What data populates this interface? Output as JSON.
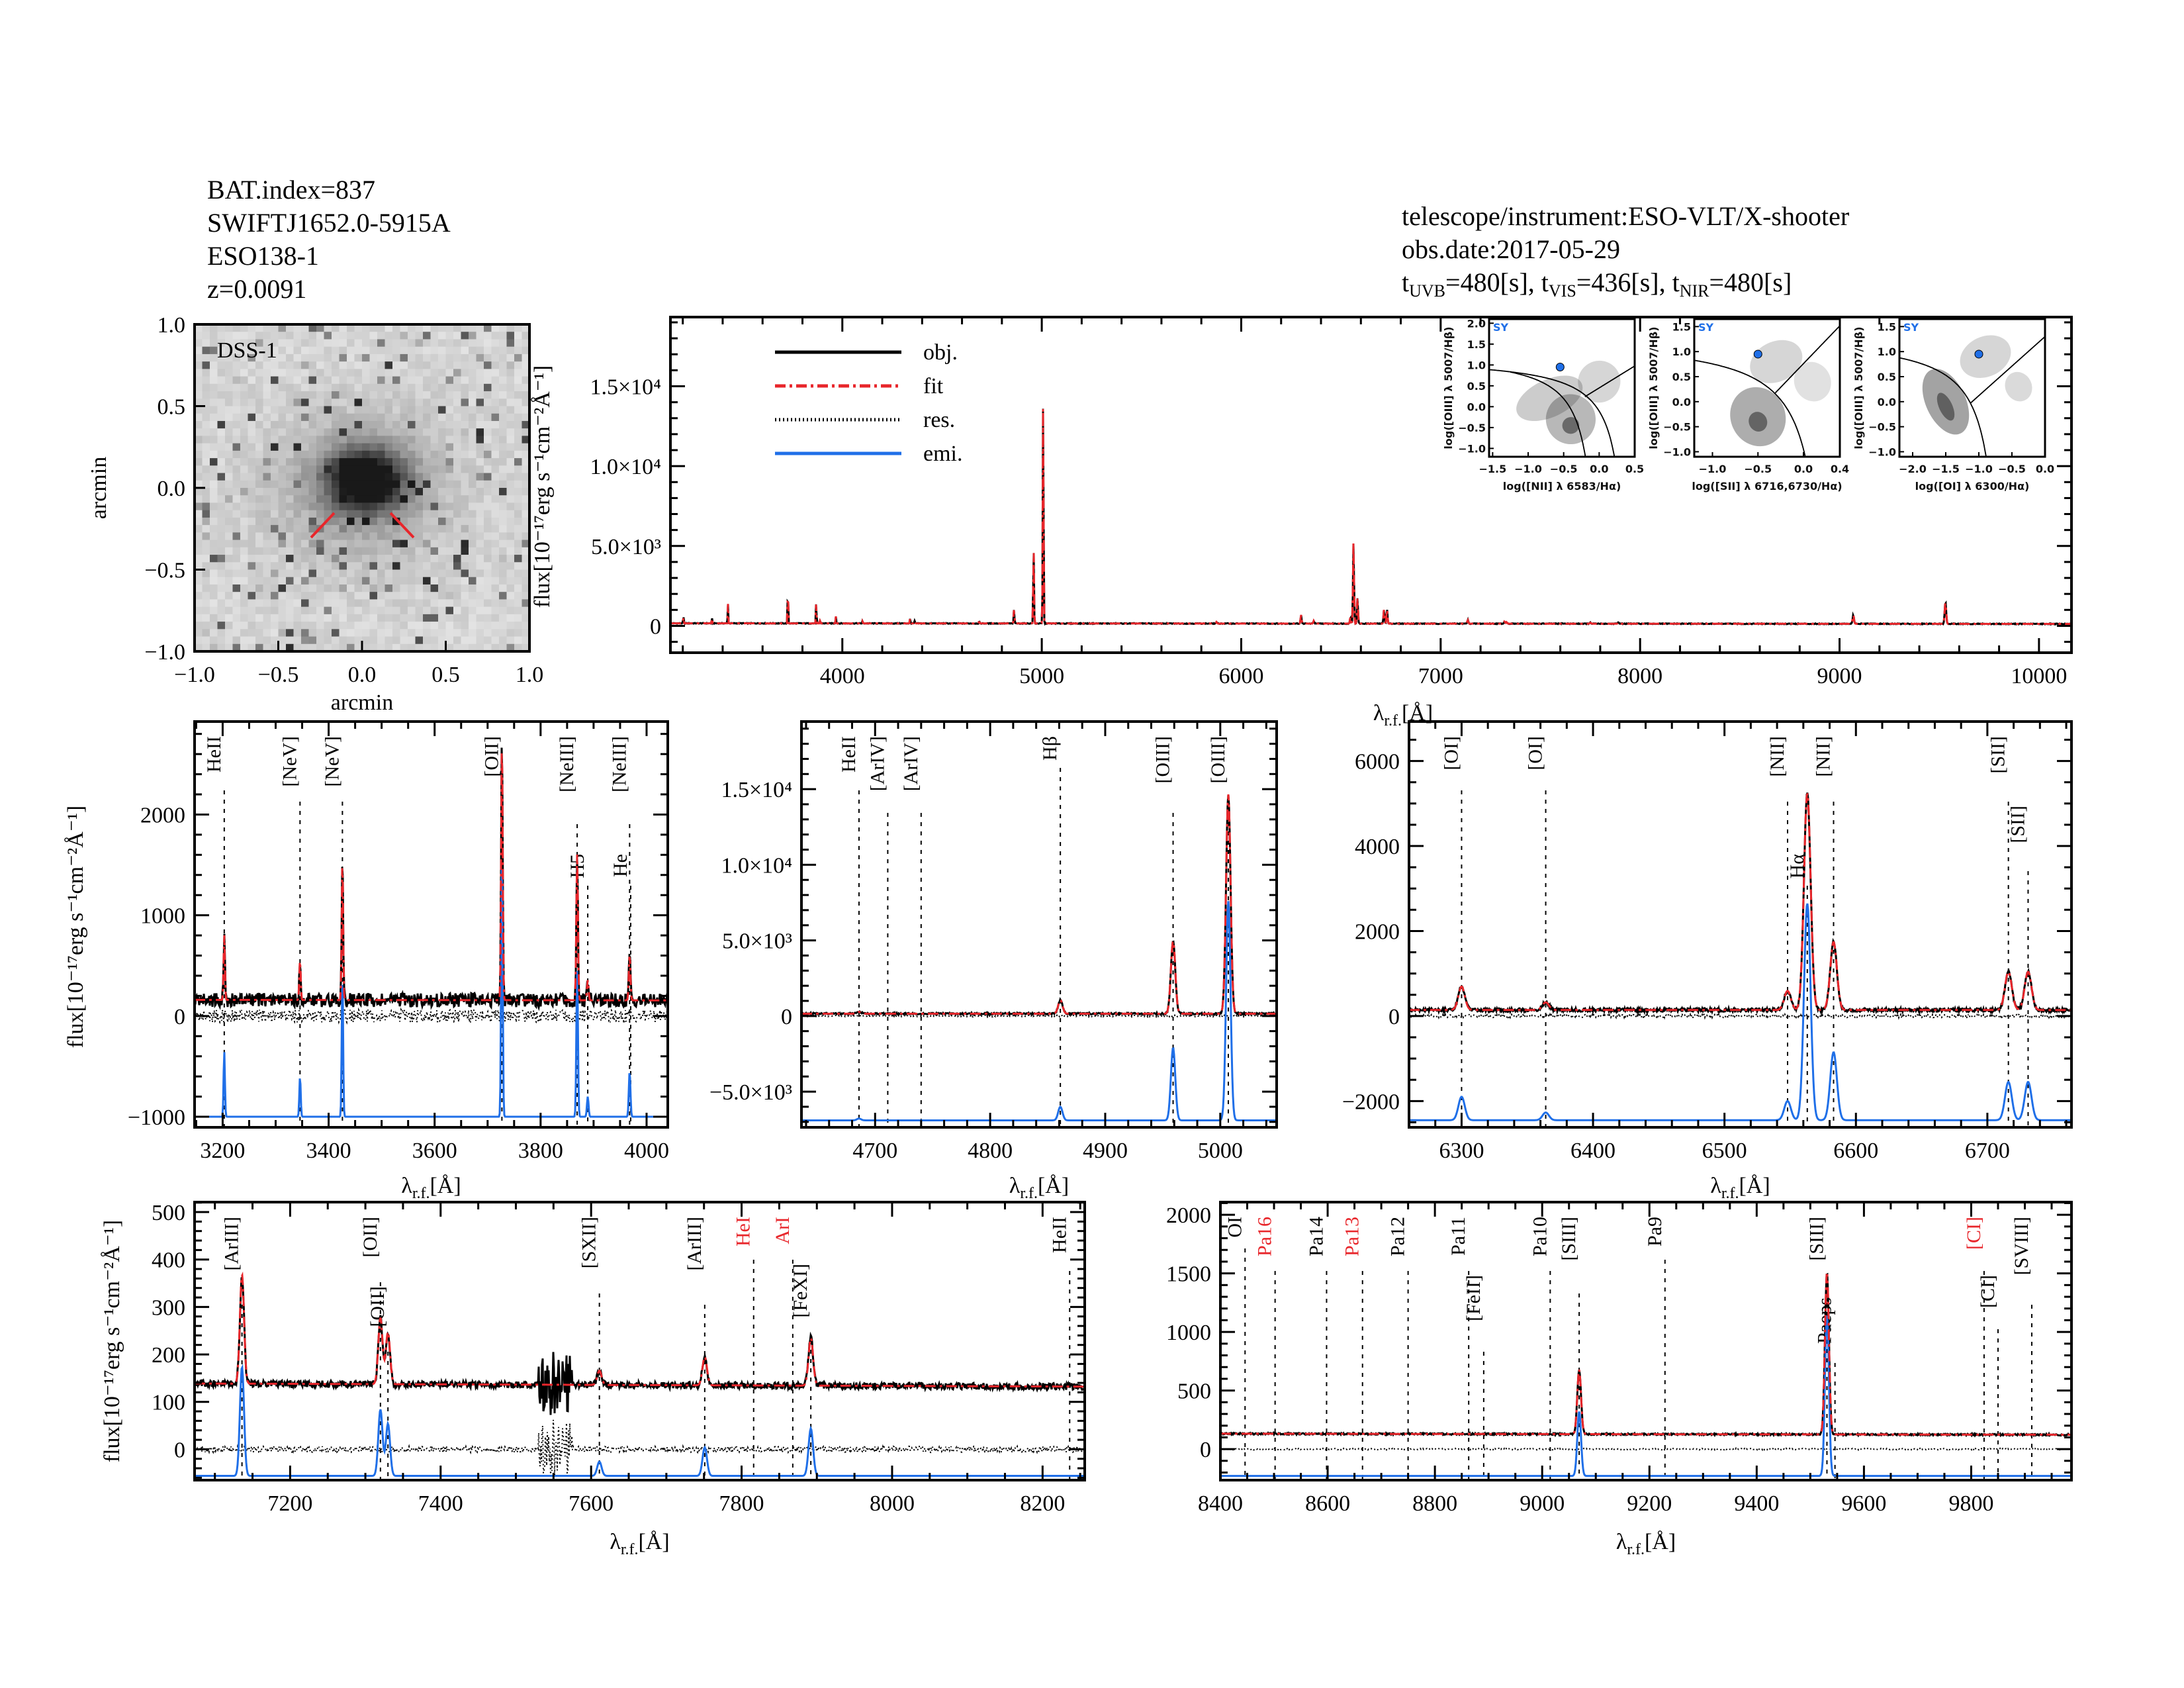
{
  "header": {
    "bat_index": "BAT.index=837",
    "swift_name": "SWIFTJ1652.0-5915A",
    "galaxy": "ESO138-1",
    "redshift": "z=0.0091",
    "instrument": "telescope/instrument:ESO-VLT/X-shooter",
    "obs_date": "obs.date:2017-05-29",
    "exposures": [
      {
        "prefix": "t",
        "band": "UVB",
        "value": "=480[s],"
      },
      {
        "prefix": "t",
        "band": "VIS",
        "value": "=436[s],"
      },
      {
        "prefix": "t",
        "band": "NIR",
        "value": "=480[s]"
      }
    ]
  },
  "image": {
    "label": "DSS-1",
    "xlabel": "arcmin",
    "ylabel": "arcmin",
    "ticks": [
      "−1.0",
      "−0.5",
      "0.0",
      "0.5",
      "1.0"
    ],
    "tick_values": [
      -1.0,
      -0.5,
      0.0,
      0.5,
      1.0
    ]
  },
  "colors": {
    "obj": "#000000",
    "fit": "#e8262b",
    "res": "#000000",
    "emi": "#1f6fe8",
    "red_label": "#e8262b",
    "sy_label": "#1f6fe8"
  },
  "xlabel": {
    "main": "λ",
    "sub": "r.f.",
    "unit": "[Å]"
  },
  "ylabel": "flux[10⁻¹⁷erg s⁻¹cm⁻²Å⁻¹]",
  "legend": [
    {
      "key": "obj",
      "label": "obj."
    },
    {
      "key": "fit",
      "label": "fit"
    },
    {
      "key": "res",
      "label": "res."
    },
    {
      "key": "emi",
      "label": "emi."
    }
  ],
  "emission_lines": [
    {
      "wave": 3203,
      "peak": 650
    },
    {
      "wave": 3346,
      "peak": 400
    },
    {
      "wave": 3426,
      "peak": 1400
    },
    {
      "wave": 3727,
      "peak": 2600
    },
    {
      "wave": 3869,
      "peak": 1450
    },
    {
      "wave": 3889,
      "peak": 200
    },
    {
      "wave": 3968,
      "peak": 450
    },
    {
      "wave": 4101,
      "peak": 150
    },
    {
      "wave": 4340,
      "peak": 300
    },
    {
      "wave": 4363,
      "peak": 150
    },
    {
      "wave": 4686,
      "peak": 120
    },
    {
      "wave": 4861,
      "peak": 900
    },
    {
      "wave": 4959,
      "peak": 4800
    },
    {
      "wave": 5007,
      "peak": 14500
    },
    {
      "wave": 5876,
      "peak": 100
    },
    {
      "wave": 6300,
      "peak": 550
    },
    {
      "wave": 6364,
      "peak": 180
    },
    {
      "wave": 6548,
      "peak": 450
    },
    {
      "wave": 6563,
      "peak": 5100
    },
    {
      "wave": 6583,
      "peak": 1600
    },
    {
      "wave": 6716,
      "peak": 900
    },
    {
      "wave": 6731,
      "peak": 900
    },
    {
      "wave": 7136,
      "peak": 230
    },
    {
      "wave": 7320,
      "peak": 140
    },
    {
      "wave": 7330,
      "peak": 110
    },
    {
      "wave": 7611,
      "peak": 30
    },
    {
      "wave": 7751,
      "peak": 60
    },
    {
      "wave": 7892,
      "peak": 100
    },
    {
      "wave": 9069,
      "peak": 550
    },
    {
      "wave": 9531,
      "peak": 1380
    }
  ],
  "chart_data": [
    {
      "id": "overview",
      "type": "line",
      "xlim": [
        3138,
        10163
      ],
      "ylim": [
        -1680,
        19330
      ],
      "xticks": [
        4000,
        5000,
        6000,
        7000,
        8000,
        9000,
        10000
      ],
      "xticklabels": [
        "4000",
        "5000",
        "6000",
        "7000",
        "8000",
        "9000",
        "10000"
      ],
      "xminor": 200,
      "yticks": [
        0,
        5000,
        10000,
        15000
      ],
      "yticklabels": [
        "0",
        "5.0×10³",
        "1.0×10⁴",
        "1.5×10⁴"
      ],
      "yminor": 1000,
      "series": [
        "obj",
        "fit"
      ],
      "emi_offset": null,
      "markers": []
    },
    {
      "id": "uv",
      "type": "line",
      "xlim": [
        3147,
        4040
      ],
      "ylim": [
        -1105,
        2923
      ],
      "xticks": [
        3200,
        3400,
        3600,
        3800,
        4000
      ],
      "xticklabels": [
        "3200",
        "3400",
        "3600",
        "3800",
        "4000"
      ],
      "xminor": 50,
      "yticks": [
        -1000,
        0,
        1000,
        2000
      ],
      "yticklabels": [
        "−1000",
        "0",
        "1000",
        "2000"
      ],
      "yminor": 200,
      "series": [
        "obj",
        "fit",
        "res",
        "emi"
      ],
      "emi_offset": -1000,
      "markers": [
        {
          "label": "HeII",
          "wave": 3203
        },
        {
          "label": "[NeV]",
          "wave": 3346
        },
        {
          "label": "[NeV]",
          "wave": 3426
        },
        {
          "label": "[OII]",
          "wave": 3727
        },
        {
          "label": "[NeIII]",
          "wave": 3869
        },
        {
          "label": "H5",
          "wave": 3889
        },
        {
          "label": "[NeIII]",
          "wave": 3968
        },
        {
          "label": "He",
          "wave": 3970
        }
      ]
    },
    {
      "id": "hbeta",
      "type": "line",
      "xlim": [
        4636,
        5049
      ],
      "ylim": [
        -7360,
        19470
      ],
      "xticks": [
        4700,
        4800,
        4900,
        5000
      ],
      "xticklabels": [
        "4700",
        "4800",
        "4900",
        "5000"
      ],
      "xminor": 20,
      "yticks": [
        -5000,
        0,
        5000,
        10000,
        15000
      ],
      "yticklabels": [
        "−5.0×10³",
        "0",
        "5.0×10³",
        "1.0×10⁴",
        "1.5×10⁴"
      ],
      "yminor": 1000,
      "series": [
        "obj",
        "fit",
        "res",
        "emi"
      ],
      "emi_offset": -6900,
      "markers": [
        {
          "label": "HeII",
          "wave": 4686
        },
        {
          "label": "[ArIV]",
          "wave": 4711
        },
        {
          "label": "[ArIV]",
          "wave": 4740
        },
        {
          "label": "Hβ",
          "wave": 4861
        },
        {
          "label": "[OIII]",
          "wave": 4959
        },
        {
          "label": "[OIII]",
          "wave": 5007
        }
      ]
    },
    {
      "id": "halpha",
      "type": "line",
      "xlim": [
        6260,
        6764
      ],
      "ylim": [
        -2618,
        6928
      ],
      "xticks": [
        6300,
        6400,
        6500,
        6600,
        6700
      ],
      "xticklabels": [
        "6300",
        "6400",
        "6500",
        "6600",
        "6700"
      ],
      "xminor": 20,
      "yticks": [
        -2000,
        0,
        2000,
        4000,
        6000
      ],
      "yticklabels": [
        "−2000",
        "0",
        "2000",
        "4000",
        "6000"
      ],
      "yminor": 500,
      "series": [
        "obj",
        "fit",
        "res",
        "emi"
      ],
      "emi_offset": -2450,
      "markers": [
        {
          "label": "[OI]",
          "wave": 6300
        },
        {
          "label": "[OI]",
          "wave": 6364
        },
        {
          "label": "[NII]",
          "wave": 6548
        },
        {
          "label": "Hα",
          "wave": 6563
        },
        {
          "label": "[NII]",
          "wave": 6583
        },
        {
          "label": "[SII]",
          "wave": 6716
        },
        {
          "label": "[SII]",
          "wave": 6731
        }
      ]
    },
    {
      "id": "red",
      "type": "line",
      "xlim": [
        7073,
        8256
      ],
      "ylim": [
        -65,
        521
      ],
      "xticks": [
        7200,
        7400,
        7600,
        7800,
        8000,
        8200
      ],
      "xticklabels": [
        "7200",
        "7400",
        "7600",
        "7800",
        "8000",
        "8200"
      ],
      "xminor": 50,
      "yticks": [
        0,
        100,
        200,
        300,
        400,
        500
      ],
      "yticklabels": [
        "0",
        "100",
        "200",
        "300",
        "400",
        "500"
      ],
      "yminor": 20,
      "series": [
        "obj",
        "fit",
        "res",
        "emi"
      ],
      "emi_offset": -56,
      "noise_bands": [
        [
          7530,
          7575
        ]
      ],
      "markers": [
        {
          "label": "[ArIII]",
          "wave": 7136
        },
        {
          "label": "[OII]",
          "wave": 7320
        },
        {
          "label": "[OII]",
          "wave": 7330
        },
        {
          "label": "[SXII]",
          "wave": 7611
        },
        {
          "label": "[ArIII]",
          "wave": 7751
        },
        {
          "label": "HeI",
          "wave": 7816,
          "color": "red"
        },
        {
          "label": "ArI",
          "wave": 7868,
          "color": "red"
        },
        {
          "label": "[FeXI]",
          "wave": 7892
        },
        {
          "label": "HeII",
          "wave": 8236
        }
      ]
    },
    {
      "id": "nir",
      "type": "line",
      "xlim": [
        8400,
        9987
      ],
      "ylim": [
        -265,
        2108
      ],
      "xticks": [
        8400,
        8600,
        8800,
        9000,
        9200,
        9400,
        9600,
        9800
      ],
      "xticklabels": [
        "8400",
        "8600",
        "8800",
        "9000",
        "9200",
        "9400",
        "9600",
        "9800"
      ],
      "xminor": 50,
      "yticks": [
        0,
        500,
        1000,
        1500,
        2000
      ],
      "yticklabels": [
        "0",
        "500",
        "1000",
        "1500",
        "2000"
      ],
      "yminor": 100,
      "series": [
        "obj",
        "fit",
        "res",
        "emi"
      ],
      "emi_offset": -229,
      "markers": [
        {
          "label": "OI",
          "wave": 8446
        },
        {
          "label": "Pa16",
          "wave": 8502,
          "color": "red"
        },
        {
          "label": "Pa14",
          "wave": 8598
        },
        {
          "label": "Pa13",
          "wave": 8665,
          "color": "red"
        },
        {
          "label": "Pa12",
          "wave": 8750
        },
        {
          "label": "Pa11",
          "wave": 8863
        },
        {
          "label": "[FeII]",
          "wave": 8891
        },
        {
          "label": "Pa10",
          "wave": 9015
        },
        {
          "label": "[SIII]",
          "wave": 9069
        },
        {
          "label": "Pa9",
          "wave": 9229
        },
        {
          "label": "[SIII]",
          "wave": 9531
        },
        {
          "label": "Paeps",
          "wave": 9546
        },
        {
          "label": "[CI]",
          "wave": 9824,
          "color": "red"
        },
        {
          "label": "[CI]",
          "wave": 9850
        },
        {
          "label": "[SVIII]",
          "wave": 9913
        }
      ]
    },
    {
      "id": "bpt-nii",
      "type": "scatter",
      "class_label": "SY",
      "xlim": [
        -1.55,
        0.5
      ],
      "ylim": [
        -1.2,
        2.1
      ],
      "xticks": [
        -1.5,
        -1.0,
        -0.5,
        0.0,
        0.5
      ],
      "xticklabels": [
        "−1.5",
        "−1.0",
        "−0.5",
        "0.0",
        "0.5"
      ],
      "yticks": [
        -1.0,
        -0.5,
        0.0,
        0.5,
        1.0,
        1.5,
        2.0
      ],
      "yticklabels": [
        "−1.0",
        "−0.5",
        "0.0",
        "0.5",
        "1.0",
        "1.5",
        "2.0"
      ],
      "xlabel": "log([NII] λ 6583/Hα)",
      "ylabel": "log([OIII] λ 5007/Hβ)",
      "point": [
        -0.55,
        0.95
      ]
    },
    {
      "id": "bpt-sii",
      "type": "scatter",
      "class_label": "SY",
      "xlim": [
        -1.2,
        0.4
      ],
      "ylim": [
        -1.1,
        1.65
      ],
      "xticks": [
        -1.0,
        -0.5,
        0.0,
        0.4
      ],
      "xticklabels": [
        "−1.0",
        "−0.5",
        "0.0",
        "0.4"
      ],
      "yticks": [
        -1.0,
        -0.5,
        0.0,
        0.5,
        1.0,
        1.5
      ],
      "yticklabels": [
        "−1.0",
        "−0.5",
        "0.0",
        "0.5",
        "1.0",
        "1.5"
      ],
      "xlabel": "log([SII] λ 6716,6730/Hα)",
      "ylabel": "log([OIII] λ 5007/Hβ)",
      "point": [
        -0.5,
        0.95
      ]
    },
    {
      "id": "bpt-oi",
      "type": "scatter",
      "class_label": "SY",
      "xlim": [
        -2.2,
        0.0
      ],
      "ylim": [
        -1.1,
        1.65
      ],
      "xticks": [
        -2.0,
        -1.5,
        -1.0,
        -0.5,
        0.0
      ],
      "xticklabels": [
        "−2.0",
        "−1.5",
        "−1.0",
        "−0.5",
        "0.0"
      ],
      "yticks": [
        -1.0,
        -0.5,
        0.0,
        0.5,
        1.0,
        1.5
      ],
      "yticklabels": [
        "−1.0",
        "−0.5",
        "0.0",
        "0.5",
        "1.0",
        "1.5"
      ],
      "xlabel": "log([OI] λ 6300/Hα)",
      "ylabel": "log([OIII] λ 5007/Hβ)",
      "point": [
        -1.0,
        0.95
      ]
    }
  ]
}
